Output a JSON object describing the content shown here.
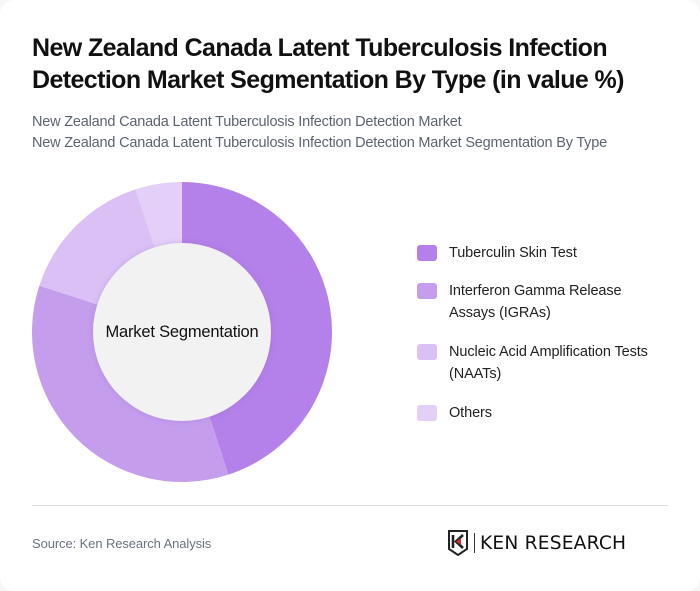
{
  "header": {
    "title": "New Zealand Canada Latent Tuberculosis Infection Detection Market Segmentation By Type (in value %)",
    "subtitle_line1": "New Zealand Canada Latent Tuberculosis Infection Detection Market",
    "subtitle_line2": "New Zealand Canada Latent Tuberculosis Infection Detection Market Segmentation By Type"
  },
  "chart": {
    "center_label": "Market Segmentation"
  },
  "legend": {
    "items": [
      {
        "label": "Tuberculin Skin Test",
        "color": "#b381e9"
      },
      {
        "label": "Interferon Gamma Release Assays (IGRAs)",
        "color": "#c49ded"
      },
      {
        "label": "Nucleic Acid Amplification Tests (NAATs)",
        "color": "#dbc0f5"
      },
      {
        "label": "Others",
        "color": "#e3cff8"
      }
    ]
  },
  "footer": {
    "source": "Source: Ken Research Analysis",
    "brand_name": "KEN RESEARCH"
  },
  "chart_data": {
    "type": "pie",
    "subtype": "donut",
    "title": "New Zealand Canada Latent Tuberculosis Infection Detection Market Segmentation By Type (in value %)",
    "subtitle": "New Zealand Canada Latent Tuberculosis Infection Detection Market Segmentation By Type",
    "center_label": "Market Segmentation",
    "categories": [
      "Tuberculin Skin Test",
      "Interferon Gamma Release Assays (IGRAs)",
      "Nucleic Acid Amplification Tests (NAATs)",
      "Others"
    ],
    "values": [
      45,
      35,
      15,
      5
    ],
    "unit": "%",
    "colors": [
      "#b381e9",
      "#c49ded",
      "#dbc0f5",
      "#e3cff8"
    ],
    "start_angle_deg": 0,
    "direction": "clockwise",
    "legend_position": "right",
    "data_labels_shown": false
  }
}
